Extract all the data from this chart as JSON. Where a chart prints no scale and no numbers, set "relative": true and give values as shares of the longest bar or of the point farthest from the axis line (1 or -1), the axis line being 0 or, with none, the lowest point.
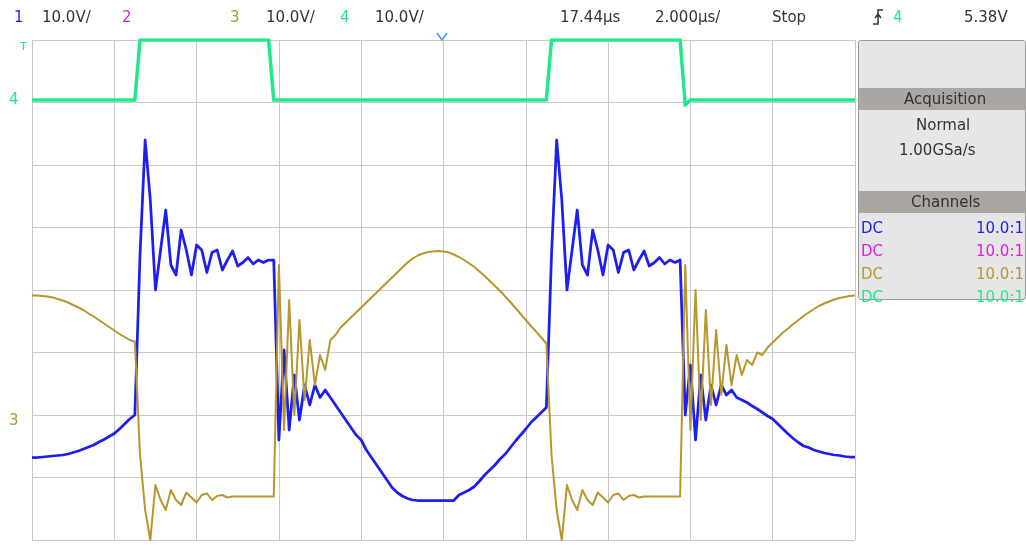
{
  "chart_data": {
    "type": "line",
    "relative": true,
    "grid": true,
    "annotations": [
      "1",
      "10.0V/",
      "2",
      "3",
      "10.0V/",
      "4",
      "10.0V/",
      "17.44µs",
      "2.000µs/",
      "Stop",
      "4",
      "5.38V",
      "T",
      "4",
      "3",
      "Acquisition",
      "Normal",
      "1.00GSa/s",
      "Channels",
      "DC",
      "10.0:1",
      "DC",
      "10.0:1",
      "DC",
      "10.0:1",
      "DC",
      "10.0:1"
    ],
    "categories": [
      null,
      null,
      null,
      null,
      null,
      null,
      null,
      null,
      null,
      null,
      null,
      null,
      null,
      null,
      null,
      null,
      null,
      null,
      null,
      null,
      null,
      null,
      null,
      null,
      null,
      null,
      null,
      null,
      null,
      null,
      null,
      null,
      null,
      null,
      null,
      null,
      null,
      null,
      null,
      null,
      null,
      null,
      null,
      null,
      null,
      null,
      null,
      null,
      null,
      null,
      null,
      null,
      null,
      null,
      null,
      null,
      null,
      null,
      null,
      null,
      null,
      null,
      null,
      null,
      null,
      null,
      null,
      null,
      null,
      null,
      null,
      null,
      null,
      null,
      null,
      null,
      null,
      null,
      null,
      null,
      null,
      null,
      null,
      null,
      null,
      null,
      null,
      null,
      null,
      null,
      null,
      null,
      null,
      null,
      null,
      null,
      null,
      null,
      null,
      null,
      null,
      null,
      null,
      null,
      null,
      null,
      null,
      null,
      null,
      null,
      null,
      null,
      null,
      null,
      null,
      null,
      null,
      null,
      null,
      null,
      null,
      null,
      null,
      null,
      null,
      null,
      null,
      null,
      null,
      null,
      null,
      null,
      null,
      null,
      null,
      null,
      null,
      null,
      null,
      null,
      null,
      null,
      null,
      null,
      null,
      null,
      null,
      null,
      null,
      null,
      null,
      null,
      null,
      null,
      null,
      null,
      null,
      null,
      null,
      null,
      null
    ],
    "series": [
      {
        "color": "#22e88c",
        "values": [
          0.88,
          0.88,
          0.88,
          0.88,
          0.88,
          0.88,
          0.88,
          0.88,
          0.88,
          0.88,
          0.88,
          0.88,
          0.88,
          0.88,
          0.88,
          0.88,
          0.88,
          0.88,
          0.88,
          0.88,
          0.88,
          1,
          1,
          1,
          1,
          1,
          1,
          1,
          1,
          1,
          1,
          1,
          1,
          1,
          1,
          1,
          1,
          1,
          1,
          1,
          1,
          1,
          1,
          1,
          1,
          1,
          1,
          0.88,
          0.88,
          0.88,
          0.88,
          0.88,
          0.88,
          0.88,
          0.88,
          0.88,
          0.88,
          0.88,
          0.88,
          0.88,
          0.88,
          0.88,
          0.88,
          0.88,
          0.88,
          0.88,
          0.88,
          0.88,
          0.88,
          0.88,
          0.88,
          0.88,
          0.88,
          0.88,
          0.88,
          0.88,
          0.88,
          0.88,
          0.88,
          0.88,
          0.88,
          0.88,
          0.88,
          0.88,
          0.88,
          0.88,
          0.88,
          0.88,
          0.88,
          0.88,
          0.88,
          0.88,
          0.88,
          0.88,
          0.88,
          0.88,
          0.88,
          0.88,
          0.88,
          0.88,
          0.88,
          1,
          1,
          1,
          1,
          1,
          1,
          1,
          1,
          1,
          1,
          1,
          1,
          1,
          1,
          1,
          1,
          1,
          1,
          1,
          1,
          1,
          1,
          1,
          1,
          1,
          1,
          0.87,
          0.88,
          0.88,
          0.88,
          0.88,
          0.88,
          0.88,
          0.88,
          0.88,
          0.88,
          0.88,
          0.88,
          0.88,
          0.88,
          0.88,
          0.88,
          0.88,
          0.88,
          0.88,
          0.88,
          0.88,
          0.88,
          0.88,
          0.88,
          0.88,
          0.88,
          0.88,
          0.88,
          0.88,
          0.88,
          0.88,
          0.88,
          0.88,
          0.88
        ]
      },
      {
        "color": "#1e1ef0",
        "values": [
          0.165,
          0.165,
          0.166,
          0.167,
          0.168,
          0.169,
          0.17,
          0.172,
          0.175,
          0.178,
          0.182,
          0.186,
          0.19,
          0.196,
          0.201,
          0.207,
          0.213,
          0.222,
          0.232,
          0.242,
          0.25,
          0.57,
          0.8,
          0.68,
          0.5,
          0.58,
          0.66,
          0.55,
          0.53,
          0.62,
          0.58,
          0.53,
          0.59,
          0.58,
          0.535,
          0.575,
          0.58,
          0.54,
          0.56,
          0.578,
          0.548,
          0.555,
          0.565,
          0.552,
          0.56,
          0.555,
          0.56,
          0.56,
          0.2,
          0.38,
          0.22,
          0.33,
          0.24,
          0.31,
          0.27,
          0.31,
          0.285,
          0.3,
          0.285,
          0.27,
          0.255,
          0.24,
          0.225,
          0.21,
          0.2,
          0.18,
          0.165,
          0.15,
          0.135,
          0.12,
          0.105,
          0.095,
          0.088,
          0.083,
          0.08,
          0.079,
          0.079,
          0.079,
          0.079,
          0.079,
          0.079,
          0.079,
          0.079,
          0.09,
          0.095,
          0.1,
          0.107,
          0.118,
          0.13,
          0.14,
          0.15,
          0.162,
          0.172,
          0.185,
          0.198,
          0.21,
          0.222,
          0.235,
          0.245,
          0.255,
          0.265,
          0.57,
          0.8,
          0.68,
          0.5,
          0.58,
          0.66,
          0.55,
          0.53,
          0.62,
          0.58,
          0.53,
          0.59,
          0.58,
          0.535,
          0.575,
          0.58,
          0.54,
          0.56,
          0.578,
          0.548,
          0.555,
          0.565,
          0.552,
          0.56,
          0.555,
          0.56,
          0.25,
          0.35,
          0.2,
          0.33,
          0.24,
          0.31,
          0.27,
          0.31,
          0.29,
          0.3,
          0.285,
          0.28,
          0.275,
          0.268,
          0.262,
          0.255,
          0.248,
          0.242,
          0.232,
          0.222,
          0.212,
          0.203,
          0.195,
          0.188,
          0.185,
          0.18,
          0.177,
          0.174,
          0.172,
          0.17,
          0.169,
          0.167,
          0.166,
          0.166
        ]
      },
      {
        "color": "#b8962e",
        "values": [
          0.489,
          0.489,
          0.488,
          0.487,
          0.485,
          0.482,
          0.479,
          0.475,
          0.47,
          0.465,
          0.46,
          0.453,
          0.447,
          0.44,
          0.433,
          0.426,
          0.419,
          0.412,
          0.406,
          0.4,
          0.397,
          0.17,
          0.06,
          0,
          0.11,
          0.08,
          0.06,
          0.1,
          0.08,
          0.07,
          0.095,
          0.085,
          0.075,
          0.09,
          0.093,
          0.08,
          0.088,
          0.09,
          0.085,
          0.087,
          0.087,
          0.087,
          0.087,
          0.087,
          0.087,
          0.087,
          0.087,
          0.087,
          0.55,
          0.22,
          0.48,
          0.25,
          0.44,
          0.28,
          0.4,
          0.31,
          0.37,
          0.34,
          0.4,
          0.41,
          0.425,
          0.435,
          0.445,
          0.455,
          0.465,
          0.475,
          0.485,
          0.495,
          0.505,
          0.515,
          0.525,
          0.535,
          0.545,
          0.555,
          0.563,
          0.569,
          0.573,
          0.576,
          0.577,
          0.578,
          0.577,
          0.575,
          0.571,
          0.566,
          0.56,
          0.553,
          0.546,
          0.537,
          0.528,
          0.518,
          0.508,
          0.498,
          0.487,
          0.476,
          0.464,
          0.452,
          0.44,
          0.428,
          0.417,
          0.405,
          0.393,
          0.17,
          0.06,
          0,
          0.11,
          0.08,
          0.06,
          0.1,
          0.08,
          0.07,
          0.095,
          0.085,
          0.075,
          0.09,
          0.093,
          0.08,
          0.088,
          0.09,
          0.085,
          0.087,
          0.087,
          0.087,
          0.087,
          0.087,
          0.087,
          0.087,
          0.087,
          0.55,
          0.22,
          0.5,
          0.24,
          0.46,
          0.27,
          0.42,
          0.29,
          0.39,
          0.31,
          0.37,
          0.33,
          0.36,
          0.35,
          0.375,
          0.37,
          0.385,
          0.395,
          0.405,
          0.415,
          0.423,
          0.432,
          0.44,
          0.448,
          0.455,
          0.462,
          0.468,
          0.473,
          0.477,
          0.481,
          0.484,
          0.486,
          0.488,
          0.489
        ]
      }
    ]
  }
}
